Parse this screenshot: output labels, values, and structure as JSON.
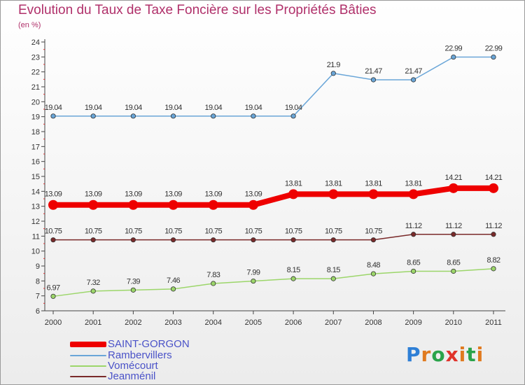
{
  "header": {
    "title": "Evolution du Taux de Taxe Foncière sur les Propriétés Bâties",
    "unit": "(en %)"
  },
  "brand": {
    "letters": [
      "P",
      "r",
      "o",
      "x",
      "i",
      "t",
      "i"
    ],
    "colors": [
      "#2e7fd6",
      "#e07a1f",
      "#2aa34a",
      "#e0332b",
      "#e07a1f",
      "#2aa34a",
      "#e07a1f"
    ]
  },
  "chart_data": {
    "type": "line",
    "x": [
      "2000",
      "2001",
      "2002",
      "2003",
      "2004",
      "2005",
      "2006",
      "2007",
      "2008",
      "2009",
      "2010",
      "2011"
    ],
    "ylim": [
      6,
      24
    ],
    "yticks": [
      6,
      7,
      8,
      9,
      10,
      11,
      12,
      13,
      14,
      15,
      16,
      17,
      18,
      19,
      20,
      21,
      22,
      23,
      24
    ],
    "grid": false,
    "legend_position": "bottom-left",
    "series": [
      {
        "name": "Rambervillers",
        "color": "#6aa6d8",
        "values": [
          19.04,
          19.04,
          19.04,
          19.04,
          19.04,
          19.04,
          19.04,
          21.9,
          21.47,
          21.47,
          22.99,
          22.99
        ],
        "labels": [
          "19.04",
          "19.04",
          "19.04",
          "19.04",
          "19.04",
          "19.04",
          "19.04",
          "21.9",
          "21.47",
          "21.47",
          "22.99",
          "22.99"
        ]
      },
      {
        "name": "SAINT-GORGON",
        "color": "#ee0000",
        "values": [
          13.09,
          13.09,
          13.09,
          13.09,
          13.09,
          13.09,
          13.81,
          13.81,
          13.81,
          13.81,
          14.21,
          14.21
        ],
        "labels": [
          "13.09",
          "13.09",
          "13.09",
          "13.09",
          "13.09",
          "13.09",
          "13.81",
          "13.81",
          "13.81",
          "13.81",
          "14.21",
          "14.21"
        ]
      },
      {
        "name": "Jeanménil",
        "color": "#7a2a2a",
        "values": [
          10.75,
          10.75,
          10.75,
          10.75,
          10.75,
          10.75,
          10.75,
          10.75,
          10.75,
          11.12,
          11.12,
          11.12
        ],
        "labels": [
          "10.75",
          "10.75",
          "10.75",
          "10.75",
          "10.75",
          "10.75",
          "10.75",
          "10.75",
          "10.75",
          "11.12",
          "11.12",
          "11.12"
        ]
      },
      {
        "name": "Vomécourt",
        "color": "#9cd66a",
        "values": [
          6.97,
          7.32,
          7.39,
          7.46,
          7.83,
          7.99,
          8.15,
          8.15,
          8.48,
          8.65,
          8.65,
          8.82
        ],
        "labels": [
          "6.97",
          "7.32",
          "7.39",
          "7.46",
          "7.83",
          "7.99",
          "8.15",
          "8.15",
          "8.48",
          "8.65",
          "8.65",
          "8.82"
        ]
      }
    ],
    "legend": [
      "SAINT-GORGON",
      "Rambervillers",
      "Vomécourt",
      "Jeanménil"
    ]
  }
}
